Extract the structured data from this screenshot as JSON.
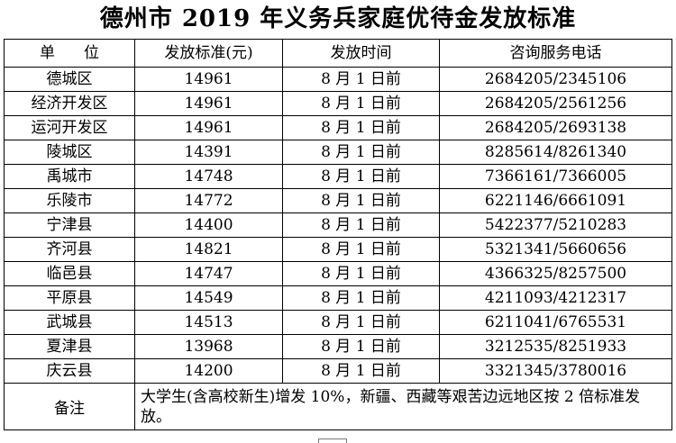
{
  "title": "德州市 2019 年义务兵家庭优待金发放标准",
  "headers": {
    "unit": "单位",
    "standard": "发放标准(元)",
    "time": "发放时间",
    "phone": "咨询服务电话"
  },
  "rows": [
    {
      "unit": "德城区",
      "standard": "14961",
      "time": "8 月 1 日前",
      "phone": "2684205/2345106"
    },
    {
      "unit": "经济开发区",
      "standard": "14961",
      "time": "8 月 1 日前",
      "phone": "2684205/2561256"
    },
    {
      "unit": "运河开发区",
      "standard": "14961",
      "time": "8 月 1 日前",
      "phone": "2684205/2693138"
    },
    {
      "unit": "陵城区",
      "standard": "14391",
      "time": "8 月 1 日前",
      "phone": "8285614/8261340"
    },
    {
      "unit": "禹城市",
      "standard": "14748",
      "time": "8 月 1 日前",
      "phone": "7366161/7366005"
    },
    {
      "unit": "乐陵市",
      "standard": "14772",
      "time": "8 月 1 日前",
      "phone": "6221146/6661091"
    },
    {
      "unit": "宁津县",
      "standard": "14400",
      "time": "8 月 1 日前",
      "phone": "5422377/5210283"
    },
    {
      "unit": "齐河县",
      "standard": "14821",
      "time": "8 月 1 日前",
      "phone": "5321341/5660656"
    },
    {
      "unit": "临邑县",
      "standard": "14747",
      "time": "8 月 1 日前",
      "phone": "4366325/8257500"
    },
    {
      "unit": "平原县",
      "standard": "14549",
      "time": "8 月 1 日前",
      "phone": "4211093/4212317"
    },
    {
      "unit": "武城县",
      "standard": "14513",
      "time": "8 月 1 日前",
      "phone": "6211041/6765531"
    },
    {
      "unit": "夏津县",
      "standard": "13968",
      "time": "8 月 1 日前",
      "phone": "3212535/8251933"
    },
    {
      "unit": "庆云县",
      "standard": "14200",
      "time": "8 月 1 日前",
      "phone": "3321345/3780016"
    }
  ],
  "note": {
    "label": "备注",
    "text": "大学生(含高校新生)增发 10%，新疆、西藏等艰苦边远地区按 2 倍标准发放。"
  }
}
